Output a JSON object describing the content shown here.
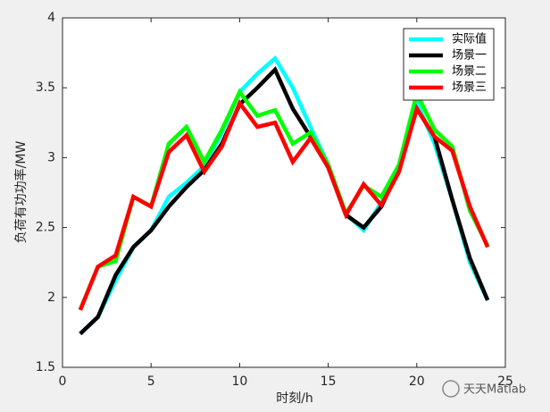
{
  "chart_data": {
    "type": "line",
    "xlabel": "时刻/h",
    "ylabel": "负荷有功功率/MW",
    "x": [
      1,
      2,
      3,
      4,
      5,
      6,
      7,
      8,
      9,
      10,
      11,
      12,
      13,
      14,
      15,
      16,
      17,
      18,
      19,
      20,
      21,
      22,
      23,
      24
    ],
    "series": [
      {
        "name": "实际值",
        "color": "#00ffff",
        "values": [
          1.74,
          1.86,
          2.12,
          2.36,
          2.48,
          2.72,
          2.82,
          2.94,
          3.18,
          3.47,
          3.6,
          3.71,
          3.5,
          3.22,
          2.95,
          2.6,
          2.48,
          2.68,
          2.95,
          3.4,
          3.1,
          2.7,
          2.25,
          1.98
        ]
      },
      {
        "name": "场景一",
        "color": "#000000",
        "values": [
          1.74,
          1.86,
          2.16,
          2.36,
          2.48,
          2.65,
          2.79,
          2.91,
          3.1,
          3.38,
          3.5,
          3.63,
          3.35,
          3.15,
          2.93,
          2.59,
          2.5,
          2.65,
          2.92,
          3.35,
          3.15,
          2.7,
          2.28,
          1.98
        ]
      },
      {
        "name": "场景二",
        "color": "#00ff00",
        "values": [
          1.91,
          2.22,
          2.26,
          2.72,
          2.65,
          3.1,
          3.22,
          2.97,
          3.2,
          3.47,
          3.3,
          3.34,
          3.1,
          3.18,
          2.95,
          2.6,
          2.8,
          2.72,
          2.95,
          3.46,
          3.2,
          3.08,
          2.62,
          2.37
        ]
      },
      {
        "name": "场景三",
        "color": "#ff0000",
        "values": [
          1.91,
          2.22,
          2.3,
          2.72,
          2.65,
          3.04,
          3.16,
          2.9,
          3.08,
          3.39,
          3.22,
          3.25,
          2.97,
          3.14,
          2.93,
          2.59,
          2.81,
          2.66,
          2.9,
          3.35,
          3.15,
          3.05,
          2.65,
          2.36
        ]
      }
    ],
    "xlim": [
      0,
      25
    ],
    "xticks": [
      0,
      5,
      10,
      15,
      20,
      25
    ],
    "ylim": [
      1.5,
      4
    ],
    "yticks": [
      1.5,
      2,
      2.5,
      3,
      3.5,
      4
    ],
    "grid": false,
    "legend": "northeast",
    "watermark": "天天Matlab"
  }
}
